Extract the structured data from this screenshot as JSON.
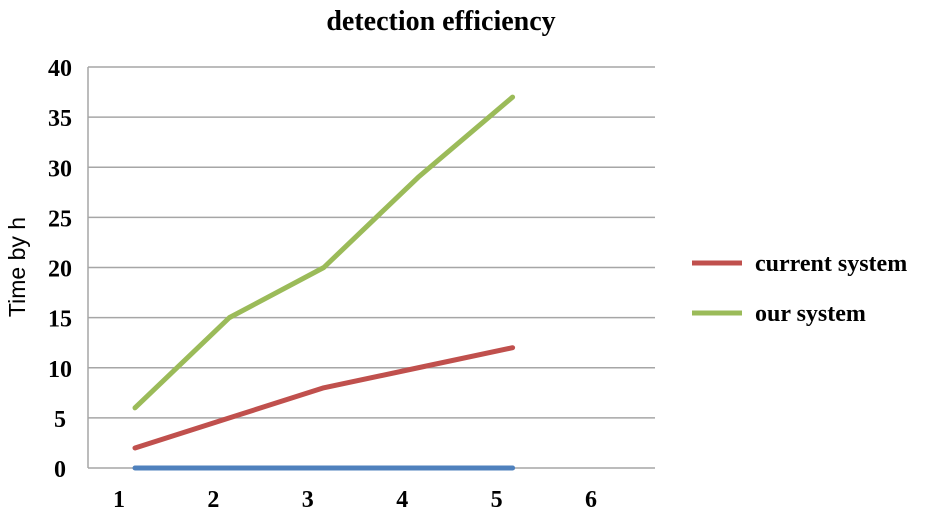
{
  "chart_data": {
    "type": "line",
    "title": "detection efficiency",
    "xlabel": "",
    "ylabel": "Time by h",
    "categories": [
      "1",
      "2",
      "3",
      "4",
      "5",
      "6"
    ],
    "ylim": [
      0,
      40
    ],
    "yticks": [
      "0",
      "5",
      "10",
      "15",
      "20",
      "25",
      "30",
      "35",
      "40"
    ],
    "grid": true,
    "legend_position": "right",
    "series": [
      {
        "name": "current system",
        "color": "#c0504d",
        "x": [
          1,
          2,
          3,
          4,
          5
        ],
        "values": [
          2,
          5,
          8,
          10,
          12
        ],
        "in_legend": true
      },
      {
        "name": "our system",
        "color": "#9bbb59",
        "x": [
          1,
          2,
          3,
          4,
          5
        ],
        "values": [
          6,
          15,
          20,
          29,
          37
        ],
        "in_legend": true
      },
      {
        "color": "#4f81bd",
        "x": [
          1,
          2,
          3,
          4,
          5
        ],
        "values": [
          0,
          0,
          0,
          0,
          0
        ],
        "in_legend": false
      }
    ]
  }
}
